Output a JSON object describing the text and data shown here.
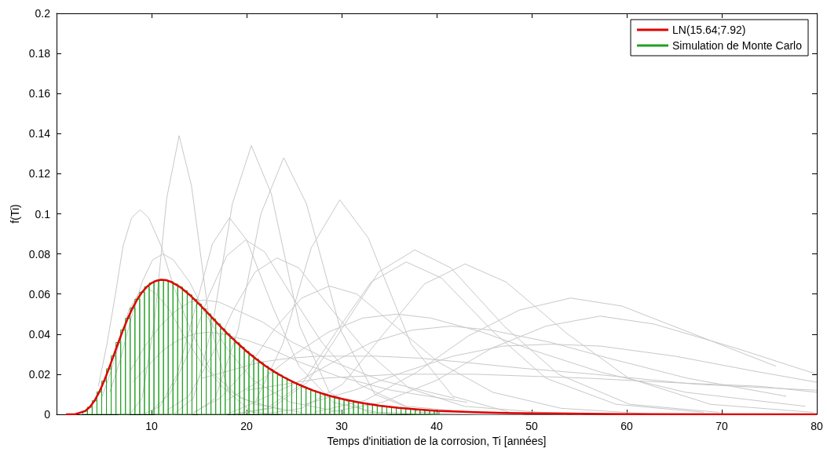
{
  "chart_data": {
    "type": "histogram",
    "xlabel": "Temps d'initiation de la corrosion, Ti [années]",
    "ylabel": "f(Ti)",
    "xlim": [
      0,
      80
    ],
    "xticks": [
      10,
      20,
      30,
      40,
      50,
      60,
      70,
      80
    ],
    "ylim": [
      0,
      0.2
    ],
    "yticks": [
      0,
      0.02,
      0.04,
      0.06,
      0.08,
      0.1,
      0.12,
      0.14,
      0.16,
      0.18,
      0.2
    ],
    "grid": false,
    "legend": "top right",
    "marker": "none",
    "series": [
      {
        "type": "line",
        "name": "LN(15.64;7.92)",
        "color": "#e00000",
        "x": [
          1,
          2,
          3,
          3.5,
          4,
          4.5,
          5,
          5.5,
          6,
          6.5,
          7,
          7.5,
          8,
          8.5,
          9,
          9.5,
          10,
          10.5,
          11,
          11.5,
          12,
          13,
          14,
          15,
          16,
          17,
          18,
          19,
          20,
          21,
          22,
          23,
          24,
          25,
          26,
          27,
          28,
          29,
          30,
          32,
          34,
          36,
          38,
          40,
          44,
          48,
          55,
          60,
          70,
          80
        ],
        "values": [
          0,
          0.0001,
          0.0016,
          0.0036,
          0.0068,
          0.0112,
          0.0166,
          0.0227,
          0.0292,
          0.0358,
          0.0421,
          0.0479,
          0.053,
          0.0574,
          0.0609,
          0.0636,
          0.0655,
          0.0666,
          0.0671,
          0.0669,
          0.0662,
          0.0635,
          0.0596,
          0.055,
          0.0501,
          0.0451,
          0.0402,
          0.0357,
          0.0314,
          0.0276,
          0.0241,
          0.021,
          0.0183,
          0.0159,
          0.0138,
          0.0119,
          0.0103,
          0.0089,
          0.0077,
          0.0058,
          0.0043,
          0.0032,
          0.0024,
          0.0018,
          0.0011,
          0.0006,
          0.0003,
          0.0001,
          0,
          0
        ]
      },
      {
        "name": "Simulation de Monte Carlo",
        "color": "#22a022",
        "bins": [
          2.75,
          3.25,
          3.75,
          4.25,
          4.75,
          5.25,
          5.75,
          6.25,
          6.75,
          7.25,
          7.75,
          8.25,
          8.75,
          9.25,
          9.75,
          10.25,
          10.75,
          11.25,
          11.75,
          12.25,
          12.75,
          13.25,
          13.75,
          14.25,
          14.75,
          15.25,
          15.75,
          16.25,
          16.75,
          17.25,
          17.75,
          18.25,
          18.75,
          19.25,
          19.75,
          20.25,
          20.75,
          21.25,
          21.75,
          22.25,
          22.75,
          23.25,
          23.75,
          24.25,
          24.75,
          25.25,
          25.75,
          26.25,
          26.75,
          27.25,
          27.75,
          28.25,
          28.75,
          29.25,
          29.75,
          30.25,
          30.75,
          31.25,
          31.75,
          32.25,
          32.75,
          33.25,
          33.75,
          34.25,
          34.75,
          35.25,
          35.75,
          36.25,
          36.75,
          37.25,
          37.75,
          38.25,
          38.75,
          39.25,
          39.75,
          40.25
        ],
        "values": [
          0.0016,
          0.0036,
          0.0068,
          0.0112,
          0.0166,
          0.0227,
          0.0292,
          0.0358,
          0.0421,
          0.0479,
          0.053,
          0.0574,
          0.0609,
          0.0636,
          0.0655,
          0.0666,
          0.0671,
          0.0669,
          0.0662,
          0.065,
          0.0635,
          0.0617,
          0.0596,
          0.0574,
          0.055,
          0.0526,
          0.0501,
          0.0476,
          0.0451,
          0.0426,
          0.0402,
          0.0379,
          0.0357,
          0.0335,
          0.0314,
          0.0295,
          0.0276,
          0.0258,
          0.0241,
          0.0225,
          0.021,
          0.0196,
          0.0183,
          0.017,
          0.0159,
          0.0148,
          0.0138,
          0.0128,
          0.0119,
          0.0111,
          0.0103,
          0.0096,
          0.0089,
          0.0083,
          0.0077,
          0.0072,
          0.0067,
          0.0062,
          0.0058,
          0.0054,
          0.005,
          0.0047,
          0.0043,
          0.004,
          0.0037,
          0.0035,
          0.0032,
          0.003,
          0.0028,
          0.0026,
          0.0024,
          0.0023,
          0.0021,
          0.002,
          0.0018
        ]
      },
      {
        "type": "line",
        "color": "#c8c8c8",
        "x": [
          6.5,
          7.7,
          9.0,
          10.3,
          11.6,
          12.9,
          14.2,
          16.1,
          18.1,
          20.6,
          23.9,
          28.4,
          34.8
        ],
        "values": [
          0,
          0,
          0.008,
          0.046,
          0.108,
          0.139,
          0.114,
          0.046,
          0.011,
          0.001,
          0,
          0,
          0
        ]
      },
      {
        "type": "line",
        "color": "#c8c8c8",
        "x": [
          4.4,
          5.3,
          6.2,
          7.0,
          7.9,
          8.8,
          9.7,
          11.0,
          12.3,
          14.1,
          16.3,
          19.4,
          23.8
        ],
        "values": [
          0.014,
          0.035,
          0.06,
          0.084,
          0.098,
          0.102,
          0.098,
          0.084,
          0.064,
          0.042,
          0.021,
          0.008,
          0.002
        ]
      },
      {
        "type": "line",
        "color": "#c8c8c8",
        "x": [
          10.3,
          12.3,
          14.4,
          16.4,
          18.5,
          20.5,
          22.6,
          25.6,
          28.7,
          32.8,
          37.9,
          45.1,
          55.4
        ],
        "values": [
          0,
          0,
          0.008,
          0.044,
          0.105,
          0.134,
          0.11,
          0.044,
          0.011,
          0.001,
          0,
          0,
          0
        ]
      },
      {
        "type": "line",
        "color": "#c8c8c8",
        "x": [
          12.0,
          14.3,
          16.7,
          19.1,
          21.5,
          23.9,
          26.3,
          29.9,
          33.5,
          38.2,
          44.2,
          52.6,
          64.5
        ],
        "values": [
          0,
          0,
          0.008,
          0.042,
          0.1,
          0.128,
          0.105,
          0.042,
          0.01,
          0.001,
          0,
          0,
          0
        ]
      },
      {
        "type": "line",
        "color": "#c8c8c8",
        "x": [
          14.9,
          17.9,
          20.9,
          23.8,
          26.8,
          29.8,
          32.8,
          37.3,
          41.7,
          47.7,
          55.1,
          65.6
        ],
        "values": [
          0,
          0,
          0.006,
          0.035,
          0.083,
          0.107,
          0.088,
          0.035,
          0.009,
          0.001,
          0,
          0
        ]
      },
      {
        "type": "line",
        "color": "#c8c8c8",
        "x": [
          9.1,
          10.9,
          12.7,
          14.6,
          16.4,
          18.2,
          20.0,
          22.8,
          25.5,
          29.1,
          33.7,
          40.0,
          49.1
        ],
        "values": [
          0,
          0.004,
          0.02,
          0.053,
          0.085,
          0.098,
          0.087,
          0.053,
          0.024,
          0.006,
          0.001,
          0,
          0
        ]
      },
      {
        "type": "line",
        "color": "#c8c8c8",
        "x": [
          10.0,
          11.9,
          13.9,
          15.9,
          17.9,
          19.9,
          21.9,
          24.9,
          27.9,
          31.8,
          36.8,
          43.8,
          53.7
        ],
        "values": [
          0.002,
          0.01,
          0.031,
          0.058,
          0.079,
          0.087,
          0.081,
          0.058,
          0.036,
          0.015,
          0.004,
          0.001,
          0
        ]
      },
      {
        "type": "line",
        "color": "#c8c8c8",
        "x": [
          5.6,
          6.7,
          7.8,
          9.0,
          10.1,
          11.2,
          12.3,
          14.0,
          15.7,
          17.9,
          20.7,
          24.6,
          30.2
        ],
        "values": [
          0.011,
          0.027,
          0.047,
          0.066,
          0.077,
          0.08,
          0.077,
          0.066,
          0.05,
          0.033,
          0.017,
          0.006,
          0.001
        ]
      },
      {
        "type": "line",
        "color": "#c8c8c8",
        "x": [
          11.6,
          13.9,
          16.2,
          18.6,
          20.9,
          23.2,
          25.5,
          29.0,
          32.5,
          37.1,
          42.9,
          51.0,
          62.6
        ],
        "values": [
          0.002,
          0.009,
          0.028,
          0.052,
          0.071,
          0.078,
          0.073,
          0.052,
          0.032,
          0.013,
          0.004,
          0.001,
          0
        ]
      },
      {
        "type": "line",
        "color": "#c8c8c8",
        "x": [
          18.9,
          22.6,
          26.4,
          30.2,
          33.9,
          37.7,
          41.5,
          47.1,
          52.8,
          60.3,
          69.7
        ],
        "values": [
          0,
          0.003,
          0.016,
          0.044,
          0.071,
          0.082,
          0.073,
          0.044,
          0.02,
          0.005,
          0.001
        ]
      },
      {
        "type": "line",
        "color": "#c8c8c8",
        "x": [
          18.4,
          22.1,
          25.8,
          29.4,
          33.1,
          36.8,
          40.5,
          46.0,
          51.5,
          58.9,
          68.1
        ],
        "values": [
          0,
          0.003,
          0.015,
          0.041,
          0.066,
          0.076,
          0.068,
          0.041,
          0.018,
          0.005,
          0.001
        ]
      },
      {
        "type": "line",
        "color": "#c8c8c8",
        "x": [
          21.5,
          25.8,
          30.1,
          34.4,
          38.7,
          43.0,
          47.3,
          53.8,
          60.2,
          68.8,
          79.6
        ],
        "values": [
          0,
          0.003,
          0.015,
          0.04,
          0.065,
          0.075,
          0.066,
          0.04,
          0.018,
          0.005,
          0.001
        ]
      },
      {
        "type": "line",
        "color": "#c8c8c8",
        "x": [
          27.1,
          32.5,
          37.9,
          43.3,
          48.7,
          54.1,
          59.5,
          67.6,
          75.7
        ],
        "values": [
          0.001,
          0.007,
          0.021,
          0.039,
          0.052,
          0.058,
          0.054,
          0.039,
          0.024
        ]
      },
      {
        "type": "line",
        "color": "#c8c8c8",
        "x": [
          17.9,
          21.5,
          25.1,
          28.6,
          32.2,
          35.8,
          39.4,
          44.8,
          50.1,
          57.3,
          66.2,
          78.8
        ],
        "values": [
          0.007,
          0.017,
          0.03,
          0.041,
          0.048,
          0.05,
          0.048,
          0.041,
          0.032,
          0.021,
          0.011,
          0.004
        ]
      },
      {
        "type": "line",
        "color": "#c8c8c8",
        "x": [
          28.6,
          34.3,
          40.0,
          45.8,
          51.5,
          57.2,
          62.9,
          71.5,
          80
        ],
        "values": [
          0.001,
          0.006,
          0.017,
          0.033,
          0.044,
          0.049,
          0.045,
          0.033,
          0.02
        ]
      },
      {
        "type": "line",
        "color": "#c8c8c8",
        "x": [
          20.8,
          24.9,
          29.1,
          33.2,
          37.4,
          41.5,
          45.7,
          51.9,
          58.1,
          66.4,
          76.8
        ],
        "values": [
          0.006,
          0.015,
          0.026,
          0.036,
          0.042,
          0.044,
          0.042,
          0.036,
          0.028,
          0.018,
          0.009
        ]
      },
      {
        "type": "line",
        "color": "#c8c8c8",
        "x": [
          26.1,
          31.3,
          36.5,
          41.7,
          46.9,
          52.1,
          57.3,
          65.1,
          72.9,
          80
        ],
        "values": [
          0.005,
          0.012,
          0.021,
          0.029,
          0.034,
          0.035,
          0.034,
          0.029,
          0.022,
          0.016
        ]
      },
      {
        "type": "line",
        "color": "#c8c8c8",
        "x": [
          15.3,
          18.4,
          21.4,
          24.5,
          27.5,
          30.6,
          33.7,
          38.3,
          42.8,
          49.0,
          56.6,
          67.3,
          80
        ],
        "values": [
          0.018,
          0.022,
          0.026,
          0.028,
          0.029,
          0.029,
          0.029,
          0.028,
          0.026,
          0.023,
          0.02,
          0.015,
          0.012
        ]
      },
      {
        "type": "line",
        "color": "#c8c8c8",
        "x": [
          4.8,
          5.7,
          6.7,
          7.6,
          8.6,
          9.5,
          10.5,
          11.9,
          13.3,
          15.2,
          17.6,
          20.9,
          25.7
        ],
        "values": [
          0.009,
          0.021,
          0.037,
          0.052,
          0.06,
          0.063,
          0.06,
          0.052,
          0.04,
          0.026,
          0.013,
          0.005,
          0.001
        ]
      },
      {
        "type": "line",
        "color": "#c8c8c8",
        "x": [
          14.4,
          17.2,
          20.1,
          23.0,
          25.8,
          28.7,
          31.6,
          35.9,
          40.2,
          45.9,
          53.1,
          63.1,
          77.5
        ],
        "values": [
          0.001,
          0.008,
          0.023,
          0.043,
          0.058,
          0.064,
          0.06,
          0.043,
          0.026,
          0.011,
          0.003,
          0,
          0
        ]
      },
      {
        "type": "line",
        "color": "#c8c8c8",
        "x": [
          7.8,
          9.3,
          10.9,
          12.4,
          14.0,
          15.5,
          17.1,
          19.4,
          21.7,
          24.8,
          28.7,
          34.1,
          41.9
        ],
        "values": [
          0.022,
          0.034,
          0.044,
          0.051,
          0.056,
          0.057,
          0.056,
          0.051,
          0.046,
          0.036,
          0.027,
          0.017,
          0.008
        ]
      },
      {
        "type": "line",
        "color": "#c8c8c8",
        "x": [
          8,
          9.6,
          11.2,
          12.8,
          14.4,
          16,
          17.6,
          20,
          22.4,
          25.6,
          29.6,
          35.2,
          43.2
        ],
        "values": [
          0.016,
          0.024,
          0.032,
          0.037,
          0.04,
          0.041,
          0.04,
          0.037,
          0.033,
          0.026,
          0.019,
          0.012,
          0.006
        ]
      },
      {
        "type": "line",
        "color": "#c8c8c8",
        "x": [
          20,
          24,
          28,
          32,
          36,
          40,
          44,
          50,
          56,
          64,
          74,
          80
        ],
        "values": [
          0.012,
          0.015,
          0.018,
          0.019,
          0.02,
          0.02,
          0.02,
          0.019,
          0.018,
          0.016,
          0.014,
          0.011
        ]
      }
    ]
  }
}
